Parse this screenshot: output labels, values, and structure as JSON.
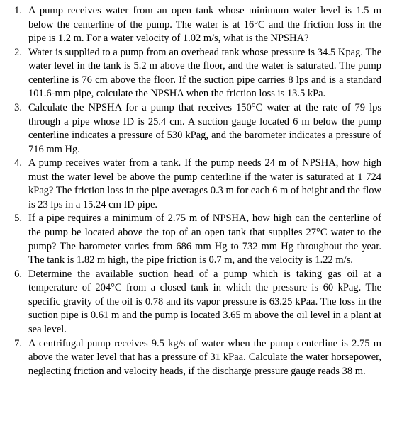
{
  "document": {
    "background_color": "#ffffff",
    "text_color": "#000000",
    "font_family": "Times New Roman",
    "font_size_pt": 11,
    "text_align": "justify",
    "problems": [
      {
        "number": "1.",
        "text": "A pump receives water from an open tank whose minimum water level is 1.5 m below the centerline of the pump. The water is at 16°C and the friction loss in the pipe is 1.2 m. For a water velocity of 1.02 m/s, what is the NPSHA?"
      },
      {
        "number": "2.",
        "text": "Water is supplied to a pump from an overhead tank whose pressure is 34.5 Kpag. The water level in the tank is 5.2 m above the floor, and the water is saturated. The pump centerline is 76 cm above the floor. If the suction pipe carries 8 lps and is a standard 101.6-mm pipe, calculate the NPSHA when the friction loss is 13.5 kPa."
      },
      {
        "number": "3.",
        "text": "Calculate the NPSHA for a pump that receives 150°C water at the rate of 79 lps through a pipe whose ID is 25.4 cm. A suction gauge located 6 m below the pump centerline indicates a pressure of 530 kPag, and the barometer indicates a pressure of 716 mm Hg."
      },
      {
        "number": "4.",
        "text": "A pump receives water from a tank. If the pump needs 24 m of NPSHA, how high must the water level be above the pump centerline if the water is saturated at 1 724 kPag? The friction loss in the pipe averages 0.3 m for each 6 m of height and the flow is 23 lps in a 15.24 cm ID pipe."
      },
      {
        "number": "5.",
        "text": "If a pipe requires a minimum of 2.75 m of NPSHA, how high can the centerline of the pump be located above the top of an open tank that supplies 27°C water to the pump? The barometer varies from 686 mm Hg to 732 mm Hg throughout the year. The tank is 1.82 m high, the pipe friction is 0.7 m, and the velocity is 1.22 m/s."
      },
      {
        "number": "6.",
        "text": "Determine the available suction head of a pump which is taking gas oil at a temperature of 204°C from a closed tank in which the pressure is 60 kPag. The specific gravity of the oil is 0.78 and its vapor pressure is 63.25 kPaa. The loss in the suction pipe is 0.61 m and the pump is located 3.65 m above the oil level in a plant at sea level."
      },
      {
        "number": "7.",
        "text": "A centrifugal pump receives 9.5 kg/s of water when the pump centerline is 2.75 m above the water level that has a pressure of 31 kPaa. Calculate the water horsepower, neglecting friction and velocity heads, if the discharge pressure gauge reads 38 m."
      }
    ]
  }
}
